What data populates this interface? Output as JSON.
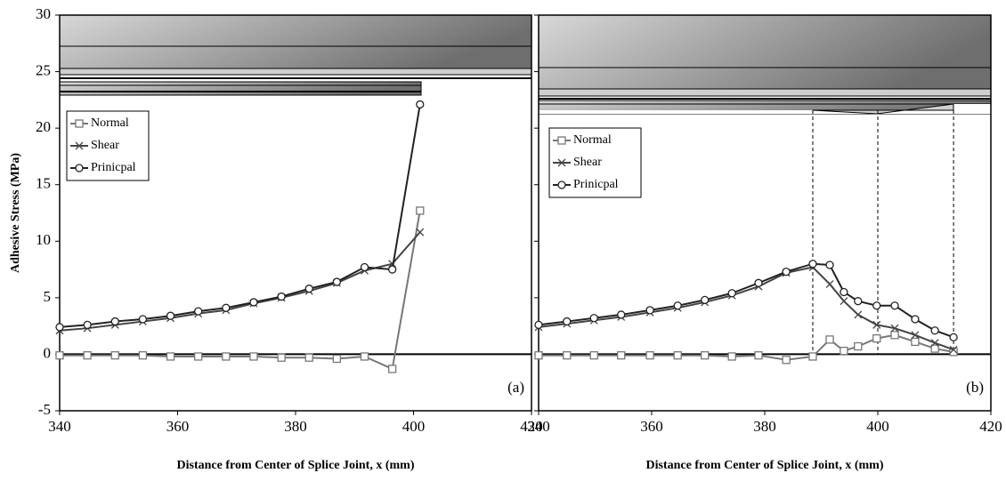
{
  "chart_data": [
    {
      "type": "line",
      "panel_label": "(a)",
      "ylabel": "Adhesive Stress (MPa)",
      "xlabel": "Distance from Center of Splice Joint, x (mm)",
      "x": [
        340,
        344.7,
        349.4,
        354.1,
        358.8,
        363.5,
        368.2,
        372.9,
        377.6,
        382.3,
        387,
        391.7,
        396.4,
        401.1
      ],
      "series": [
        {
          "name": "Normal",
          "color": "#777777",
          "marker": "square",
          "values": [
            -0.1,
            -0.1,
            -0.1,
            -0.1,
            -0.2,
            -0.2,
            -0.2,
            -0.2,
            -0.3,
            -0.3,
            -0.4,
            -0.2,
            -1.3,
            12.7
          ]
        },
        {
          "name": "Shear",
          "color": "#444444",
          "marker": "x",
          "values": [
            2.1,
            2.3,
            2.6,
            2.9,
            3.2,
            3.6,
            3.9,
            4.5,
            5.0,
            5.6,
            6.3,
            7.4,
            8.0,
            10.8
          ]
        },
        {
          "name": "Prinicpal",
          "color": "#222222",
          "marker": "circle",
          "values": [
            2.4,
            2.6,
            2.9,
            3.1,
            3.4,
            3.8,
            4.1,
            4.6,
            5.1,
            5.8,
            6.4,
            7.7,
            7.5,
            22.1
          ]
        }
      ],
      "xlim": [
        340,
        420
      ],
      "xticks": [
        340,
        360,
        380,
        400,
        420
      ],
      "ylim": [
        -5,
        30
      ],
      "yticks": [
        -5,
        0,
        5,
        10,
        15,
        20,
        25,
        30
      ],
      "ytick_labels": true
    },
    {
      "type": "line",
      "panel_label": "(b)",
      "xlabel": "Distance from Center of Splice Joint, x (mm)",
      "x": [
        340,
        345,
        349.8,
        354.6,
        359.7,
        364.6,
        369.4,
        374.2,
        378.9,
        383.8,
        388.5,
        391.5,
        394,
        396.5,
        399.8,
        403,
        406.6,
        410.1,
        413.4
      ],
      "series": [
        {
          "name": "Normal",
          "color": "#777777",
          "marker": "square",
          "values": [
            -0.1,
            -0.1,
            -0.1,
            -0.1,
            -0.1,
            -0.1,
            -0.1,
            -0.2,
            -0.1,
            -0.5,
            -0.2,
            1.3,
            0.3,
            0.7,
            1.4,
            1.7,
            1.1,
            0.5,
            0.2
          ]
        },
        {
          "name": "Shear",
          "color": "#444444",
          "marker": "x",
          "values": [
            2.4,
            2.7,
            3.0,
            3.3,
            3.7,
            4.1,
            4.6,
            5.2,
            6.0,
            7.2,
            7.7,
            6.2,
            4.7,
            3.5,
            2.6,
            2.3,
            1.7,
            1.0,
            0.4
          ]
        },
        {
          "name": "Prinicpal",
          "color": "#222222",
          "marker": "circle",
          "values": [
            2.6,
            2.9,
            3.2,
            3.5,
            3.9,
            4.3,
            4.8,
            5.4,
            6.3,
            7.3,
            8.0,
            7.9,
            5.5,
            4.7,
            4.3,
            4.3,
            3.1,
            2.1,
            1.5
          ]
        }
      ],
      "vlines": [
        388.5,
        400,
        413.4
      ],
      "xlim": [
        340,
        420
      ],
      "xticks": [
        340,
        360,
        380,
        400,
        420
      ],
      "ylim": [
        -5,
        30
      ],
      "yticks": [
        -5,
        0,
        5,
        10,
        15,
        20,
        25,
        30
      ],
      "ytick_labels": false
    }
  ]
}
